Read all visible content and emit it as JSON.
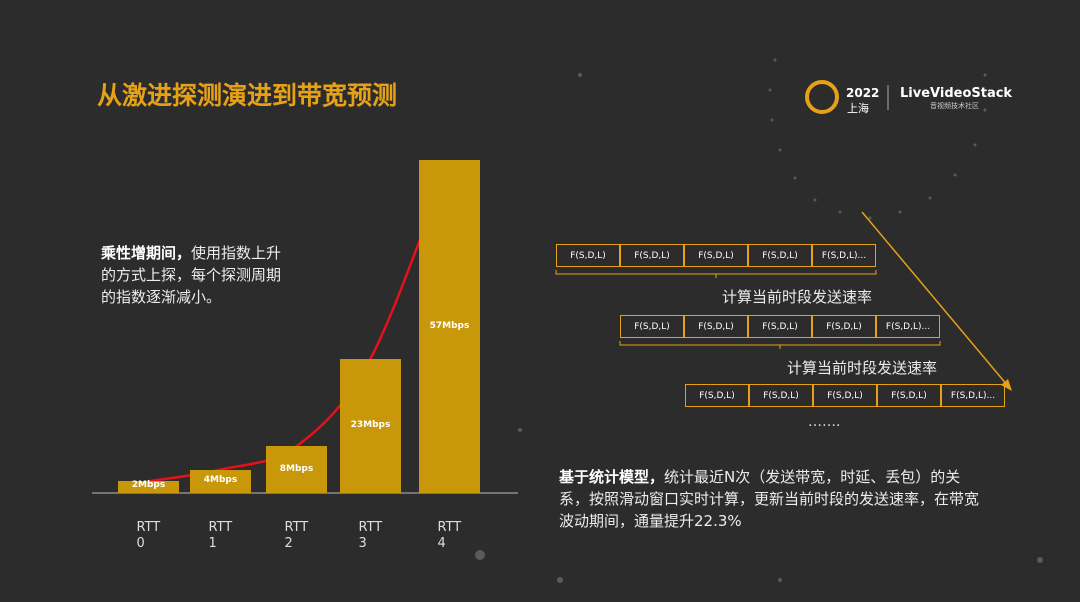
{
  "title": "从激进探测演进到带宽预测",
  "logo": {
    "year": "2022",
    "city": "上海",
    "brand": "LiveVideoStack",
    "subtitle": "音视频技术社区"
  },
  "left_note": {
    "bold": "乘性增期间，",
    "text": "使用指数上升的方式上探，每个探测周期的指数逐渐减小。"
  },
  "chart_data": {
    "type": "bar",
    "categories": [
      "RTT 0",
      "RTT 1",
      "RTT 2",
      "RTT 3",
      "RTT 4"
    ],
    "values": [
      2,
      4,
      8,
      23,
      57
    ],
    "value_labels": [
      "2Mbps",
      "4Mbps",
      "8Mbps",
      "23Mbps",
      "57Mbps"
    ],
    "color": "#c8970a",
    "trend_color": "#e8101a"
  },
  "diagram": {
    "rows": [
      [
        "F(S,D,L)",
        "F(S,D,L)",
        "F(S,D,L)",
        "F(S,D,L)",
        "F(S,D,L)..."
      ],
      [
        "F(S,D,L)",
        "F(S,D,L)",
        "F(S,D,L)",
        "F(S,D,L)",
        "F(S,D,L)..."
      ],
      [
        "F(S,D,L)",
        "F(S,D,L)",
        "F(S,D,L)",
        "F(S,D,L)",
        "F(S,D,L)..."
      ]
    ],
    "brace_labels": [
      "计算当前时段发送速率",
      "计算当前时段发送速率"
    ],
    "ellipsis": "……."
  },
  "right_note": {
    "bold": "基于统计模型，",
    "text": "统计最近N次（发送带宽，时延、丢包）的关系，按照滑动窗口实时计算，更新当前时段的发送速率，在带宽波动期间，通量提升22.3%"
  }
}
